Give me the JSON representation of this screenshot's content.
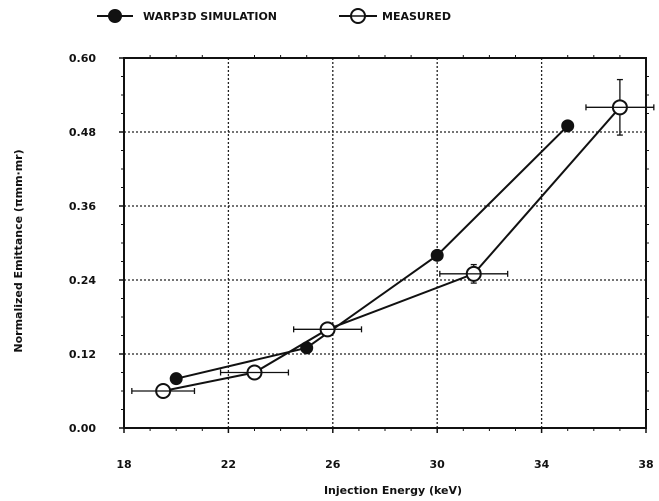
{
  "chart_data": {
    "type": "line",
    "xlabel": "Injection  Energy  (keV)",
    "ylabel": "Normalized  Emittance  (πmm·mr)",
    "xlim": [
      18,
      38
    ],
    "ylim": [
      0.0,
      0.6
    ],
    "x_ticks": [
      "18",
      "22",
      "26",
      "30",
      "34",
      "38"
    ],
    "y_ticks": [
      "0.00",
      "0.12",
      "0.24",
      "0.36",
      "0.48",
      "0.60"
    ],
    "grid": true,
    "legend_position": "top-left",
    "series": [
      {
        "name": "WARP3D SIMULATION",
        "marker": "filled-circle",
        "points": [
          {
            "x": 20.0,
            "y": 0.08
          },
          {
            "x": 25.0,
            "y": 0.13
          },
          {
            "x": 30.0,
            "y": 0.28
          },
          {
            "x": 35.0,
            "y": 0.49
          }
        ]
      },
      {
        "name": "MEASURED",
        "marker": "open-circle",
        "points": [
          {
            "x": 19.5,
            "y": 0.06,
            "xerr": 1.2,
            "yerr": 0
          },
          {
            "x": 23.0,
            "y": 0.09,
            "xerr": 1.3,
            "yerr": 0
          },
          {
            "x": 25.8,
            "y": 0.16,
            "xerr": 1.3,
            "yerr": 0
          },
          {
            "x": 31.4,
            "y": 0.25,
            "xerr": 1.3,
            "yerr": 0.015
          },
          {
            "x": 37.0,
            "y": 0.52,
            "xerr": 1.3,
            "yerr": 0.045
          }
        ]
      }
    ]
  }
}
